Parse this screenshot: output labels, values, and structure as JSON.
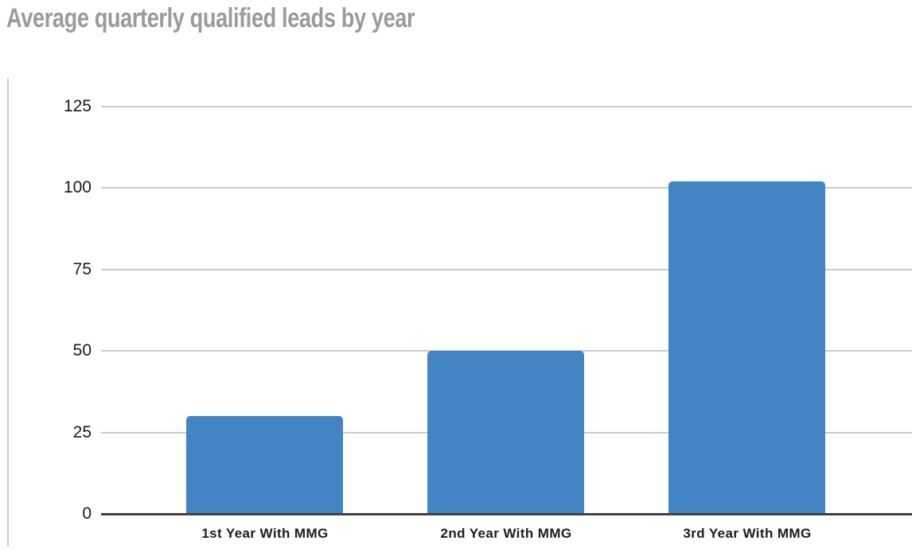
{
  "page": {
    "background": "#ffffff"
  },
  "chart_data": {
    "type": "bar",
    "title": "Average quarterly qualified leads by year",
    "categories": [
      "1st Year With MMG",
      "2nd Year With MMG",
      "3rd Year With MMG"
    ],
    "values": [
      30,
      50,
      102
    ],
    "xlabel": "",
    "ylabel": "",
    "ylim": [
      0,
      125
    ],
    "yticks": [
      0,
      25,
      50,
      75,
      100,
      125
    ],
    "grid": "horizontal",
    "legend": "none",
    "colors": {
      "bar": "#4385c3",
      "gridline": "#cccccc",
      "axis_line": "#424242",
      "title_text": "#9b9b9b",
      "tick_text": "#1a1a1a",
      "frame_line": "#cfcfcf"
    }
  }
}
